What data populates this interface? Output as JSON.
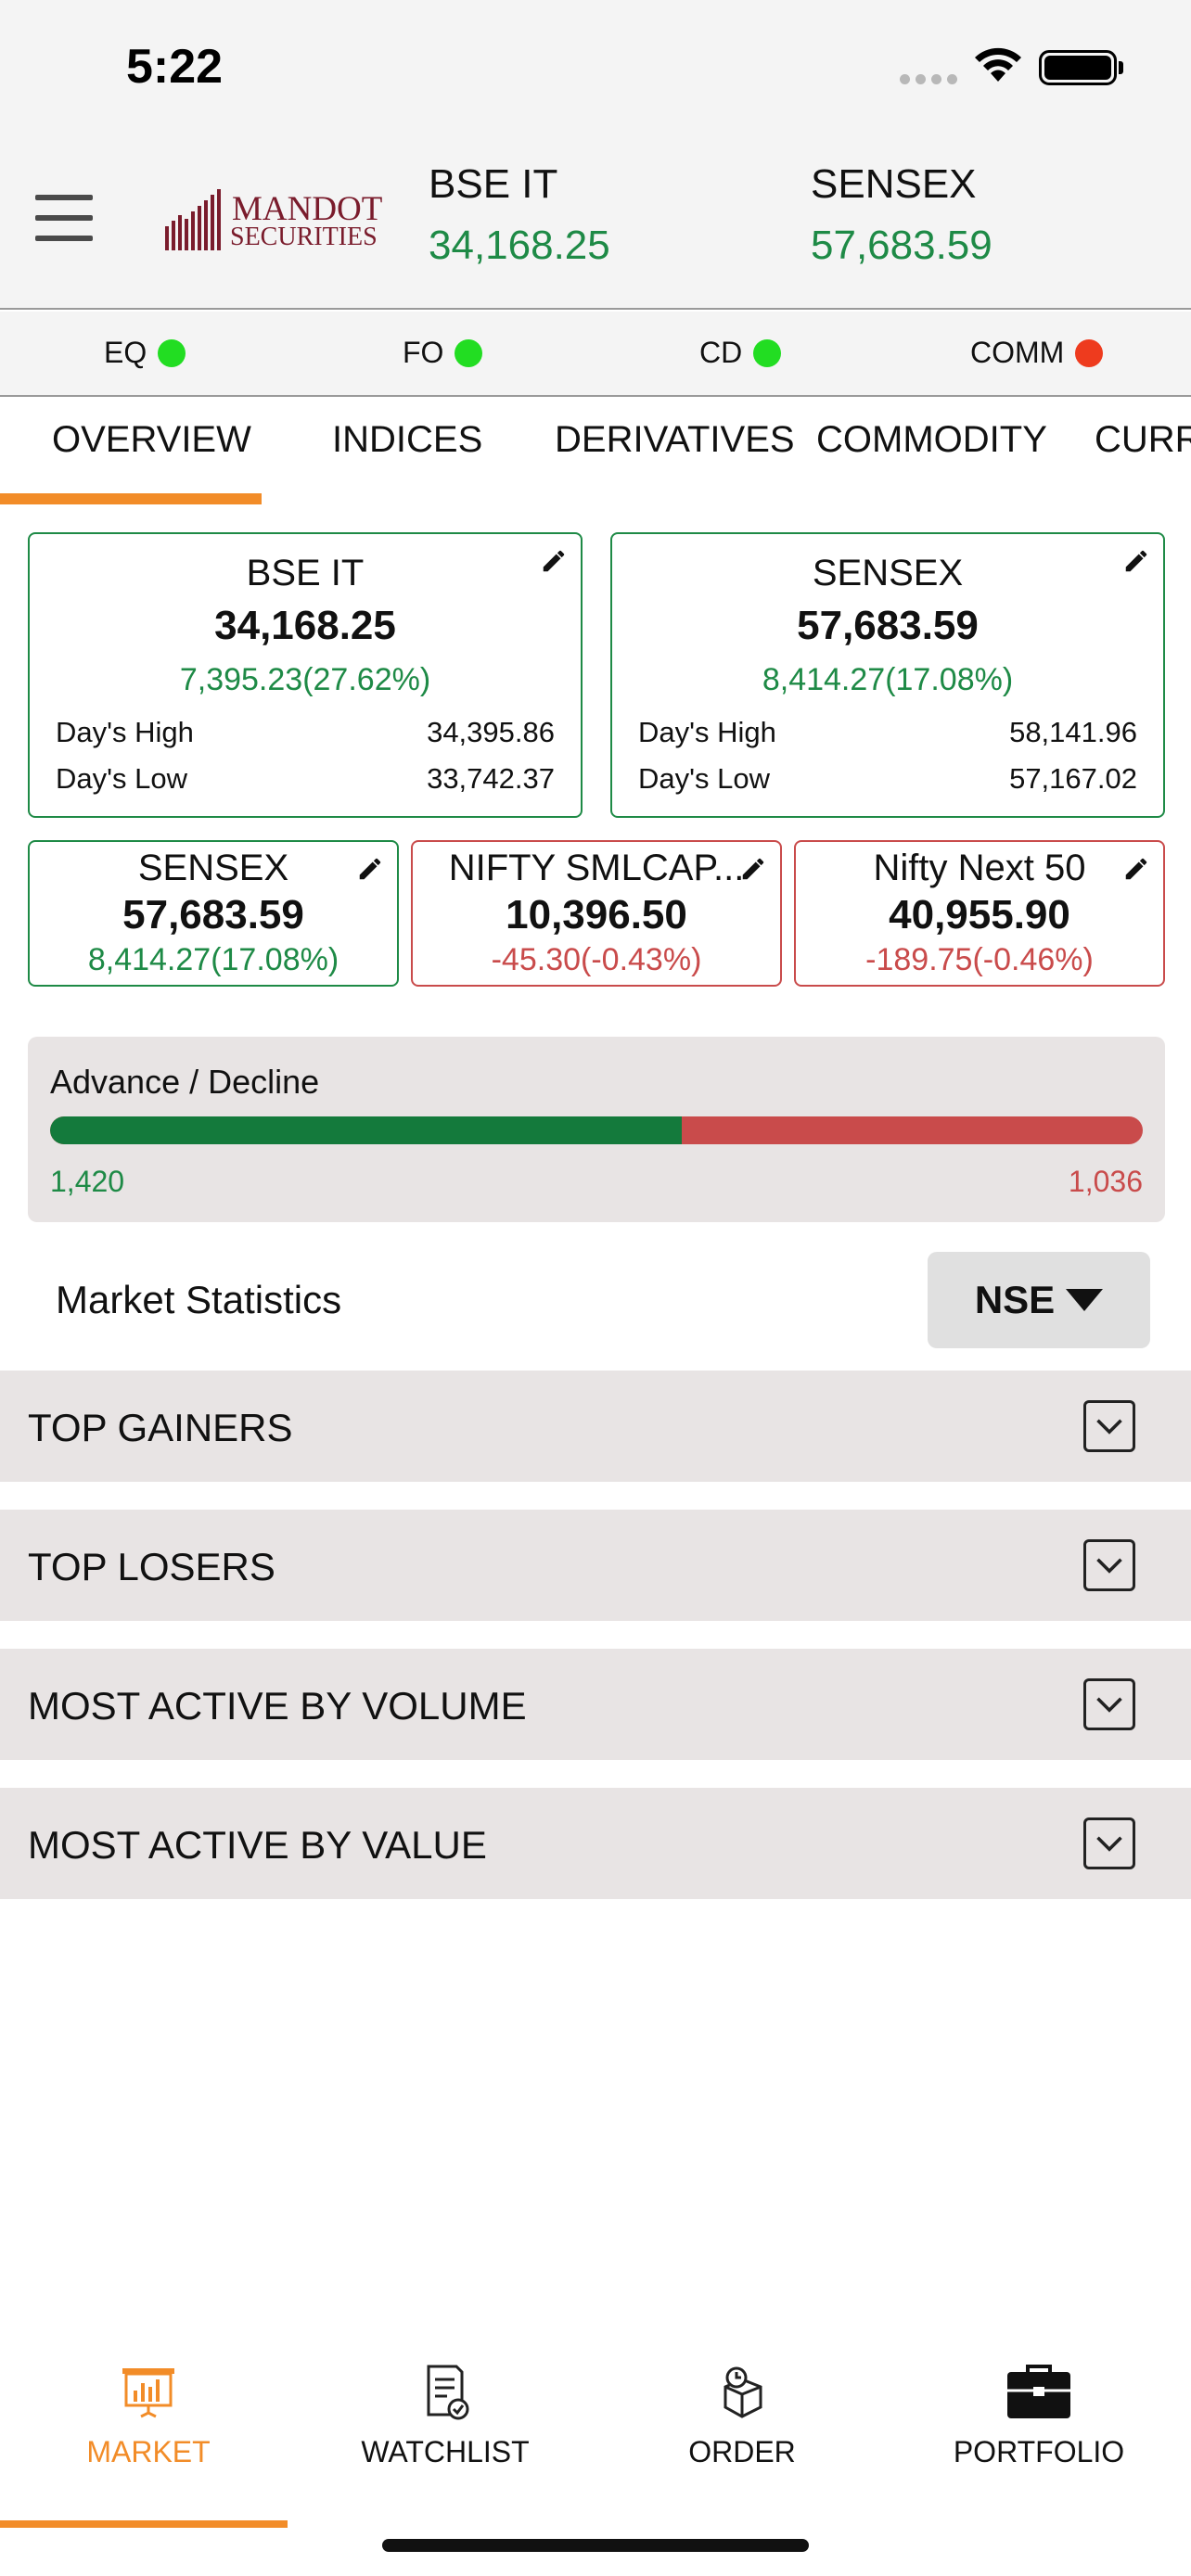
{
  "status_bar": {
    "time": "5:22"
  },
  "header": {
    "logo": {
      "line1": "MANDOT",
      "line2": "SECURITIES"
    },
    "indices": [
      {
        "name": "BSE IT",
        "value": "34,168.25"
      },
      {
        "name": "SENSEX",
        "value": "57,683.59"
      }
    ]
  },
  "exchanges": [
    {
      "label": "EQ",
      "status_color": "#22dd22"
    },
    {
      "label": "FO",
      "status_color": "#22dd22"
    },
    {
      "label": "CD",
      "status_color": "#22dd22"
    },
    {
      "label": "COMM",
      "status_color": "#ee3b1e"
    }
  ],
  "tabs": [
    {
      "label": "OVERVIEW"
    },
    {
      "label": "INDICES"
    },
    {
      "label": "DERIVATIVES"
    },
    {
      "label": "COMMODITY"
    },
    {
      "label": "CURRI"
    }
  ],
  "cards_large": [
    {
      "name": "BSE IT",
      "value": "34,168.25",
      "change": "7,395.23(27.62%)",
      "high_label": "Day's High",
      "high": "34,395.86",
      "low_label": "Day's Low",
      "low": "33,742.37"
    },
    {
      "name": "SENSEX",
      "value": "57,683.59",
      "change": "8,414.27(17.08%)",
      "high_label": "Day's High",
      "high": "58,141.96",
      "low_label": "Day's Low",
      "low": "57,167.02"
    }
  ],
  "cards_small": [
    {
      "name": "SENSEX",
      "value": "57,683.59",
      "change": "8,414.27(17.08%)"
    },
    {
      "name": "NIFTY SMLCAP...",
      "value": "10,396.50",
      "change": "-45.30(-0.43%)"
    },
    {
      "name": "Nifty Next 50",
      "value": "40,955.90",
      "change": "-189.75(-0.46%)"
    }
  ],
  "advance_decline": {
    "title": "Advance / Decline",
    "advance": "1,420",
    "decline": "1,036",
    "advance_fraction": 0.578
  },
  "market_statistics": {
    "title": "Market Statistics",
    "exchange": "NSE"
  },
  "sections": [
    {
      "label": "TOP GAINERS"
    },
    {
      "label": "TOP LOSERS"
    },
    {
      "label": "MOST ACTIVE BY VOLUME"
    },
    {
      "label": "MOST ACTIVE BY VALUE"
    }
  ],
  "bottom_nav": [
    {
      "label": "MARKET",
      "icon": "market-icon"
    },
    {
      "label": "WATCHLIST",
      "icon": "watchlist-icon"
    },
    {
      "label": "ORDER",
      "icon": "order-icon"
    },
    {
      "label": "PORTFOLIO",
      "icon": "portfolio-icon"
    }
  ],
  "colors": {
    "accent": "#f28c28",
    "positive": "#1e8a46",
    "negative": "#c94b4b"
  }
}
